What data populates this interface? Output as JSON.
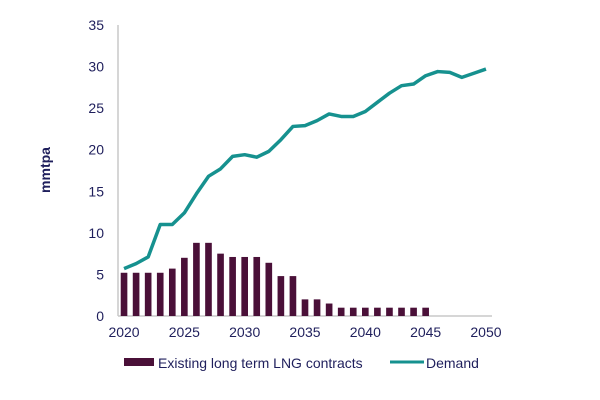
{
  "chart_data": {
    "type": "bar+line",
    "title": "",
    "xlabel": "",
    "ylabel": "mmtpa",
    "ylim": [
      0,
      35
    ],
    "xlim": [
      2020,
      2050
    ],
    "yticks": [
      "0",
      "5",
      "10",
      "15",
      "20",
      "25",
      "30",
      "35"
    ],
    "xticks": [
      "2020",
      "2025",
      "2030",
      "2035",
      "2040",
      "2045",
      "2050"
    ],
    "grid": false,
    "legend_position": "bottom",
    "x": [
      2020,
      2021,
      2022,
      2023,
      2024,
      2025,
      2026,
      2027,
      2028,
      2029,
      2030,
      2031,
      2032,
      2033,
      2034,
      2035,
      2036,
      2037,
      2038,
      2039,
      2040,
      2041,
      2042,
      2043,
      2044,
      2045,
      2046,
      2047,
      2048,
      2049,
      2050
    ],
    "series": [
      {
        "name": "Existing long term LNG contracts",
        "kind": "bar",
        "color": "#4a1038",
        "values": [
          5.2,
          5.2,
          5.2,
          5.2,
          5.7,
          7.0,
          8.8,
          8.8,
          7.5,
          7.1,
          7.1,
          7.1,
          6.4,
          4.8,
          4.8,
          2.0,
          2.0,
          1.5,
          1.0,
          1.0,
          1.0,
          1.0,
          1.0,
          1.0,
          1.0,
          1.0,
          null,
          null,
          null,
          null,
          null
        ]
      },
      {
        "name": "Demand",
        "kind": "line",
        "color": "#16918f",
        "values": [
          5.7,
          6.3,
          7.1,
          11.0,
          11.0,
          12.4,
          14.7,
          16.8,
          17.7,
          19.2,
          19.4,
          19.1,
          19.8,
          21.2,
          22.8,
          22.9,
          23.5,
          24.3,
          24.0,
          24.0,
          24.6,
          25.7,
          26.8,
          27.7,
          27.9,
          28.9,
          29.4,
          29.3,
          28.7,
          29.2,
          29.7
        ]
      }
    ]
  }
}
